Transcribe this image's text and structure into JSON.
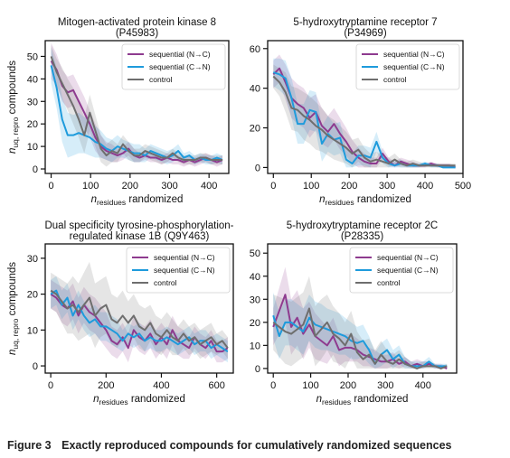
{
  "colors": {
    "sequential_nc": "#8e3b8f",
    "sequential_cn": "#1e9bdc",
    "control": "#6e6e6e"
  },
  "caption": {
    "label": "Figure 3",
    "text": "Exactly reproduced compounds for cumulatively randomized sequences"
  },
  "chart_data": [
    {
      "type": "line",
      "title": "Mitogen-activated protein kinase 8\n(P45983)",
      "xlabel": "n_residues randomized",
      "ylabel": "n_uq, repro compounds",
      "xlim": [
        -15,
        450
      ],
      "ylim": [
        -2,
        57
      ],
      "xticks": [
        0,
        100,
        200,
        300,
        400
      ],
      "yticks": [
        0,
        10,
        20,
        30,
        40,
        50
      ],
      "legend": "top-right",
      "legend_labels": [
        "sequential (N→C)",
        "sequential (C→N)",
        "control"
      ],
      "x": [
        0,
        14,
        28,
        42,
        56,
        70,
        84,
        98,
        112,
        126,
        140,
        154,
        168,
        182,
        196,
        210,
        224,
        238,
        252,
        266,
        280,
        294,
        308,
        322,
        336,
        350,
        364,
        378,
        392,
        406,
        420,
        434
      ],
      "series": [
        {
          "key": "sequential_nc",
          "values": [
            48,
            44,
            37,
            34,
            35,
            30,
            25,
            20,
            14,
            10,
            8,
            7,
            6,
            7,
            9,
            6,
            5,
            6,
            5,
            5,
            4,
            5,
            4,
            4,
            3,
            4,
            3,
            4,
            5,
            4,
            3,
            4
          ],
          "band": [
            8,
            7,
            7,
            7,
            7,
            7,
            7,
            6,
            6,
            5,
            4,
            4,
            3,
            3,
            3,
            3,
            2,
            2,
            2,
            2,
            2,
            2,
            2,
            2,
            2,
            2,
            2,
            2,
            2,
            2,
            2,
            2
          ]
        },
        {
          "key": "sequential_cn",
          "values": [
            46,
            36,
            22,
            15,
            15,
            16,
            15,
            14,
            12,
            11,
            9,
            8,
            10,
            9,
            8,
            7,
            7,
            6,
            8,
            7,
            6,
            5,
            6,
            8,
            5,
            6,
            4,
            5,
            4,
            4,
            5,
            4
          ],
          "band": [
            8,
            9,
            10,
            10,
            9,
            9,
            8,
            8,
            7,
            6,
            5,
            5,
            5,
            4,
            4,
            4,
            4,
            3,
            3,
            3,
            3,
            3,
            3,
            3,
            2,
            2,
            2,
            2,
            2,
            2,
            2,
            2
          ]
        },
        {
          "key": "control",
          "values": [
            50,
            43,
            38,
            33,
            28,
            22,
            15,
            25,
            17,
            9,
            6,
            8,
            7,
            11,
            8,
            6,
            6,
            8,
            7,
            6,
            5,
            5,
            7,
            5,
            4,
            4,
            4,
            5,
            5,
            4,
            4,
            4
          ],
          "band": [
            5,
            6,
            7,
            7,
            8,
            8,
            8,
            8,
            7,
            6,
            5,
            5,
            4,
            4,
            4,
            3,
            3,
            3,
            3,
            3,
            3,
            2,
            2,
            2,
            2,
            2,
            2,
            2,
            2,
            2,
            2,
            2
          ]
        }
      ]
    },
    {
      "type": "line",
      "title": "5-hydroxytryptamine receptor 7\n(P34969)",
      "xlabel": "n_residues randomized",
      "ylabel": "",
      "xlim": [
        -15,
        500
      ],
      "ylim": [
        -3,
        64
      ],
      "xticks": [
        0,
        100,
        200,
        300,
        400,
        500
      ],
      "yticks": [
        0,
        20,
        40,
        60
      ],
      "legend": "top-right",
      "legend_labels": [
        "sequential (N→C)",
        "sequential (C→N)",
        "control"
      ],
      "x": [
        0,
        16,
        32,
        48,
        64,
        80,
        96,
        112,
        128,
        144,
        160,
        176,
        192,
        208,
        224,
        240,
        256,
        272,
        288,
        304,
        320,
        336,
        352,
        368,
        384,
        400,
        416,
        432,
        448,
        464,
        480
      ],
      "series": [
        {
          "key": "sequential_nc",
          "values": [
            47,
            50,
            43,
            35,
            32,
            30,
            25,
            28,
            21,
            18,
            22,
            17,
            13,
            8,
            5,
            3,
            2,
            2,
            7,
            3,
            1,
            3,
            2,
            1,
            1,
            1,
            2,
            1,
            1,
            1,
            0
          ],
          "band": [
            7,
            7,
            9,
            10,
            10,
            10,
            10,
            9,
            9,
            8,
            8,
            8,
            7,
            6,
            5,
            4,
            3,
            3,
            3,
            2,
            2,
            2,
            2,
            2,
            1,
            1,
            1,
            1,
            1,
            1,
            1
          ]
        },
        {
          "key": "sequential_cn",
          "values": [
            48,
            47,
            45,
            35,
            22,
            22,
            29,
            28,
            12,
            17,
            14,
            15,
            4,
            2,
            6,
            6,
            5,
            13,
            5,
            2,
            1,
            2,
            1,
            1,
            1,
            2,
            1,
            1,
            0,
            0,
            0
          ],
          "band": [
            7,
            8,
            9,
            10,
            10,
            10,
            10,
            10,
            9,
            9,
            8,
            8,
            6,
            5,
            5,
            5,
            5,
            5,
            3,
            2,
            2,
            2,
            1,
            1,
            1,
            1,
            1,
            1,
            1,
            1,
            1
          ]
        },
        {
          "key": "control",
          "values": [
            46,
            43,
            38,
            30,
            29,
            26,
            24,
            21,
            19,
            16,
            14,
            12,
            10,
            7,
            9,
            5,
            3,
            4,
            3,
            2,
            4,
            2,
            1,
            2,
            1,
            1,
            1,
            1,
            1,
            1,
            1
          ],
          "band": [
            6,
            7,
            10,
            11,
            11,
            12,
            12,
            12,
            11,
            10,
            10,
            9,
            8,
            7,
            6,
            5,
            4,
            4,
            3,
            3,
            3,
            2,
            2,
            2,
            2,
            1,
            1,
            1,
            1,
            1,
            1
          ]
        }
      ]
    },
    {
      "type": "line",
      "title": "Dual specificity tyrosine-phosphorylation-\nregulated kinase 1B (Q9Y463)",
      "xlabel": "n_residues randomized",
      "ylabel": "n_uq, repro compounds",
      "xlim": [
        -20,
        660
      ],
      "ylim": [
        -2,
        34
      ],
      "xticks": [
        0,
        200,
        400,
        600
      ],
      "yticks": [
        0,
        10,
        20,
        30
      ],
      "legend": "top-right",
      "legend_labels": [
        "sequential (N→C)",
        "sequential (C→N)",
        "control"
      ],
      "x": [
        0,
        20,
        40,
        60,
        80,
        100,
        120,
        140,
        160,
        180,
        200,
        220,
        240,
        260,
        280,
        300,
        320,
        340,
        360,
        380,
        400,
        420,
        440,
        460,
        480,
        500,
        520,
        540,
        560,
        580,
        600,
        620,
        640
      ],
      "series": [
        {
          "key": "sequential_nc",
          "values": [
            20,
            19,
            17,
            16,
            18,
            14,
            17,
            15,
            14,
            12,
            10,
            7,
            6,
            8,
            5,
            10,
            8,
            7,
            9,
            6,
            8,
            6,
            10,
            7,
            6,
            5,
            8,
            6,
            5,
            7,
            4,
            4,
            5
          ],
          "band": [
            4,
            4,
            5,
            5,
            5,
            5,
            5,
            5,
            5,
            5,
            5,
            4,
            4,
            4,
            4,
            4,
            4,
            4,
            4,
            4,
            4,
            4,
            4,
            4,
            4,
            3,
            3,
            3,
            3,
            3,
            3,
            3,
            3
          ]
        },
        {
          "key": "sequential_cn",
          "values": [
            20,
            21,
            17,
            19,
            14,
            17,
            14,
            12,
            13,
            11,
            11,
            10,
            9,
            7,
            9,
            8,
            9,
            7,
            8,
            7,
            7,
            8,
            7,
            6,
            7,
            8,
            6,
            7,
            7,
            5,
            6,
            5,
            4
          ],
          "band": [
            4,
            4,
            4,
            4,
            4,
            4,
            4,
            4,
            4,
            4,
            4,
            4,
            4,
            3,
            3,
            3,
            3,
            3,
            3,
            3,
            3,
            3,
            3,
            3,
            3,
            3,
            3,
            3,
            3,
            3,
            3,
            3,
            3
          ]
        },
        {
          "key": "control",
          "values": [
            21,
            20,
            18,
            16,
            17,
            15,
            17,
            19,
            14,
            16,
            17,
            13,
            12,
            14,
            12,
            14,
            11,
            10,
            12,
            9,
            8,
            10,
            8,
            7,
            9,
            7,
            8,
            6,
            7,
            8,
            6,
            7,
            5
          ],
          "band": [
            5,
            5,
            6,
            7,
            8,
            8,
            9,
            10,
            9,
            8,
            8,
            7,
            7,
            7,
            6,
            6,
            6,
            6,
            5,
            5,
            5,
            5,
            5,
            4,
            4,
            4,
            4,
            4,
            4,
            4,
            3,
            3,
            3
          ]
        }
      ]
    },
    {
      "type": "line",
      "title": "5-hydroxytryptamine receptor 2C\n(P28335)",
      "xlabel": "n_residues randomized",
      "ylabel": "",
      "xlim": [
        -15,
        490
      ],
      "ylim": [
        -2,
        54
      ],
      "xticks": [
        0,
        100,
        200,
        300,
        400
      ],
      "yticks": [
        0,
        10,
        20,
        30,
        40,
        50
      ],
      "legend": "top-right",
      "legend_labels": [
        "sequential (N→C)",
        "sequential (C→N)",
        "control"
      ],
      "x": [
        0,
        16,
        32,
        48,
        64,
        80,
        96,
        112,
        128,
        144,
        160,
        176,
        192,
        208,
        224,
        240,
        256,
        272,
        288,
        304,
        320,
        336,
        352,
        368,
        384,
        400,
        416,
        432,
        448,
        464
      ],
      "series": [
        {
          "key": "sequential_nc",
          "values": [
            18,
            25,
            32,
            18,
            22,
            15,
            19,
            14,
            12,
            10,
            14,
            8,
            9,
            9,
            8,
            6,
            5,
            4,
            3,
            3,
            4,
            2,
            3,
            1,
            2,
            1,
            2,
            1,
            1,
            0
          ],
          "band": [
            8,
            10,
            12,
            12,
            12,
            11,
            10,
            10,
            9,
            8,
            8,
            7,
            6,
            6,
            5,
            5,
            4,
            4,
            3,
            3,
            3,
            2,
            2,
            2,
            2,
            2,
            1,
            1,
            1,
            1
          ]
        },
        {
          "key": "sequential_cn",
          "values": [
            23,
            14,
            20,
            20,
            18,
            16,
            22,
            19,
            18,
            17,
            16,
            15,
            14,
            12,
            11,
            12,
            8,
            2,
            6,
            8,
            4,
            6,
            2,
            1,
            1,
            1,
            3,
            1,
            1,
            1
          ],
          "band": [
            10,
            10,
            10,
            10,
            10,
            10,
            10,
            10,
            10,
            9,
            9,
            9,
            8,
            8,
            7,
            7,
            6,
            5,
            5,
            5,
            4,
            4,
            3,
            2,
            2,
            2,
            2,
            1,
            1,
            1
          ]
        },
        {
          "key": "control",
          "values": [
            20,
            18,
            16,
            15,
            17,
            19,
            26,
            14,
            17,
            20,
            15,
            13,
            10,
            15,
            7,
            4,
            6,
            2,
            6,
            3,
            2,
            4,
            2,
            1,
            0,
            1,
            1,
            1,
            0,
            1
          ],
          "band": [
            12,
            13,
            14,
            14,
            14,
            14,
            14,
            13,
            13,
            12,
            12,
            11,
            10,
            10,
            9,
            8,
            7,
            6,
            6,
            5,
            4,
            4,
            3,
            2,
            2,
            2,
            2,
            1,
            1,
            1
          ]
        }
      ]
    }
  ]
}
